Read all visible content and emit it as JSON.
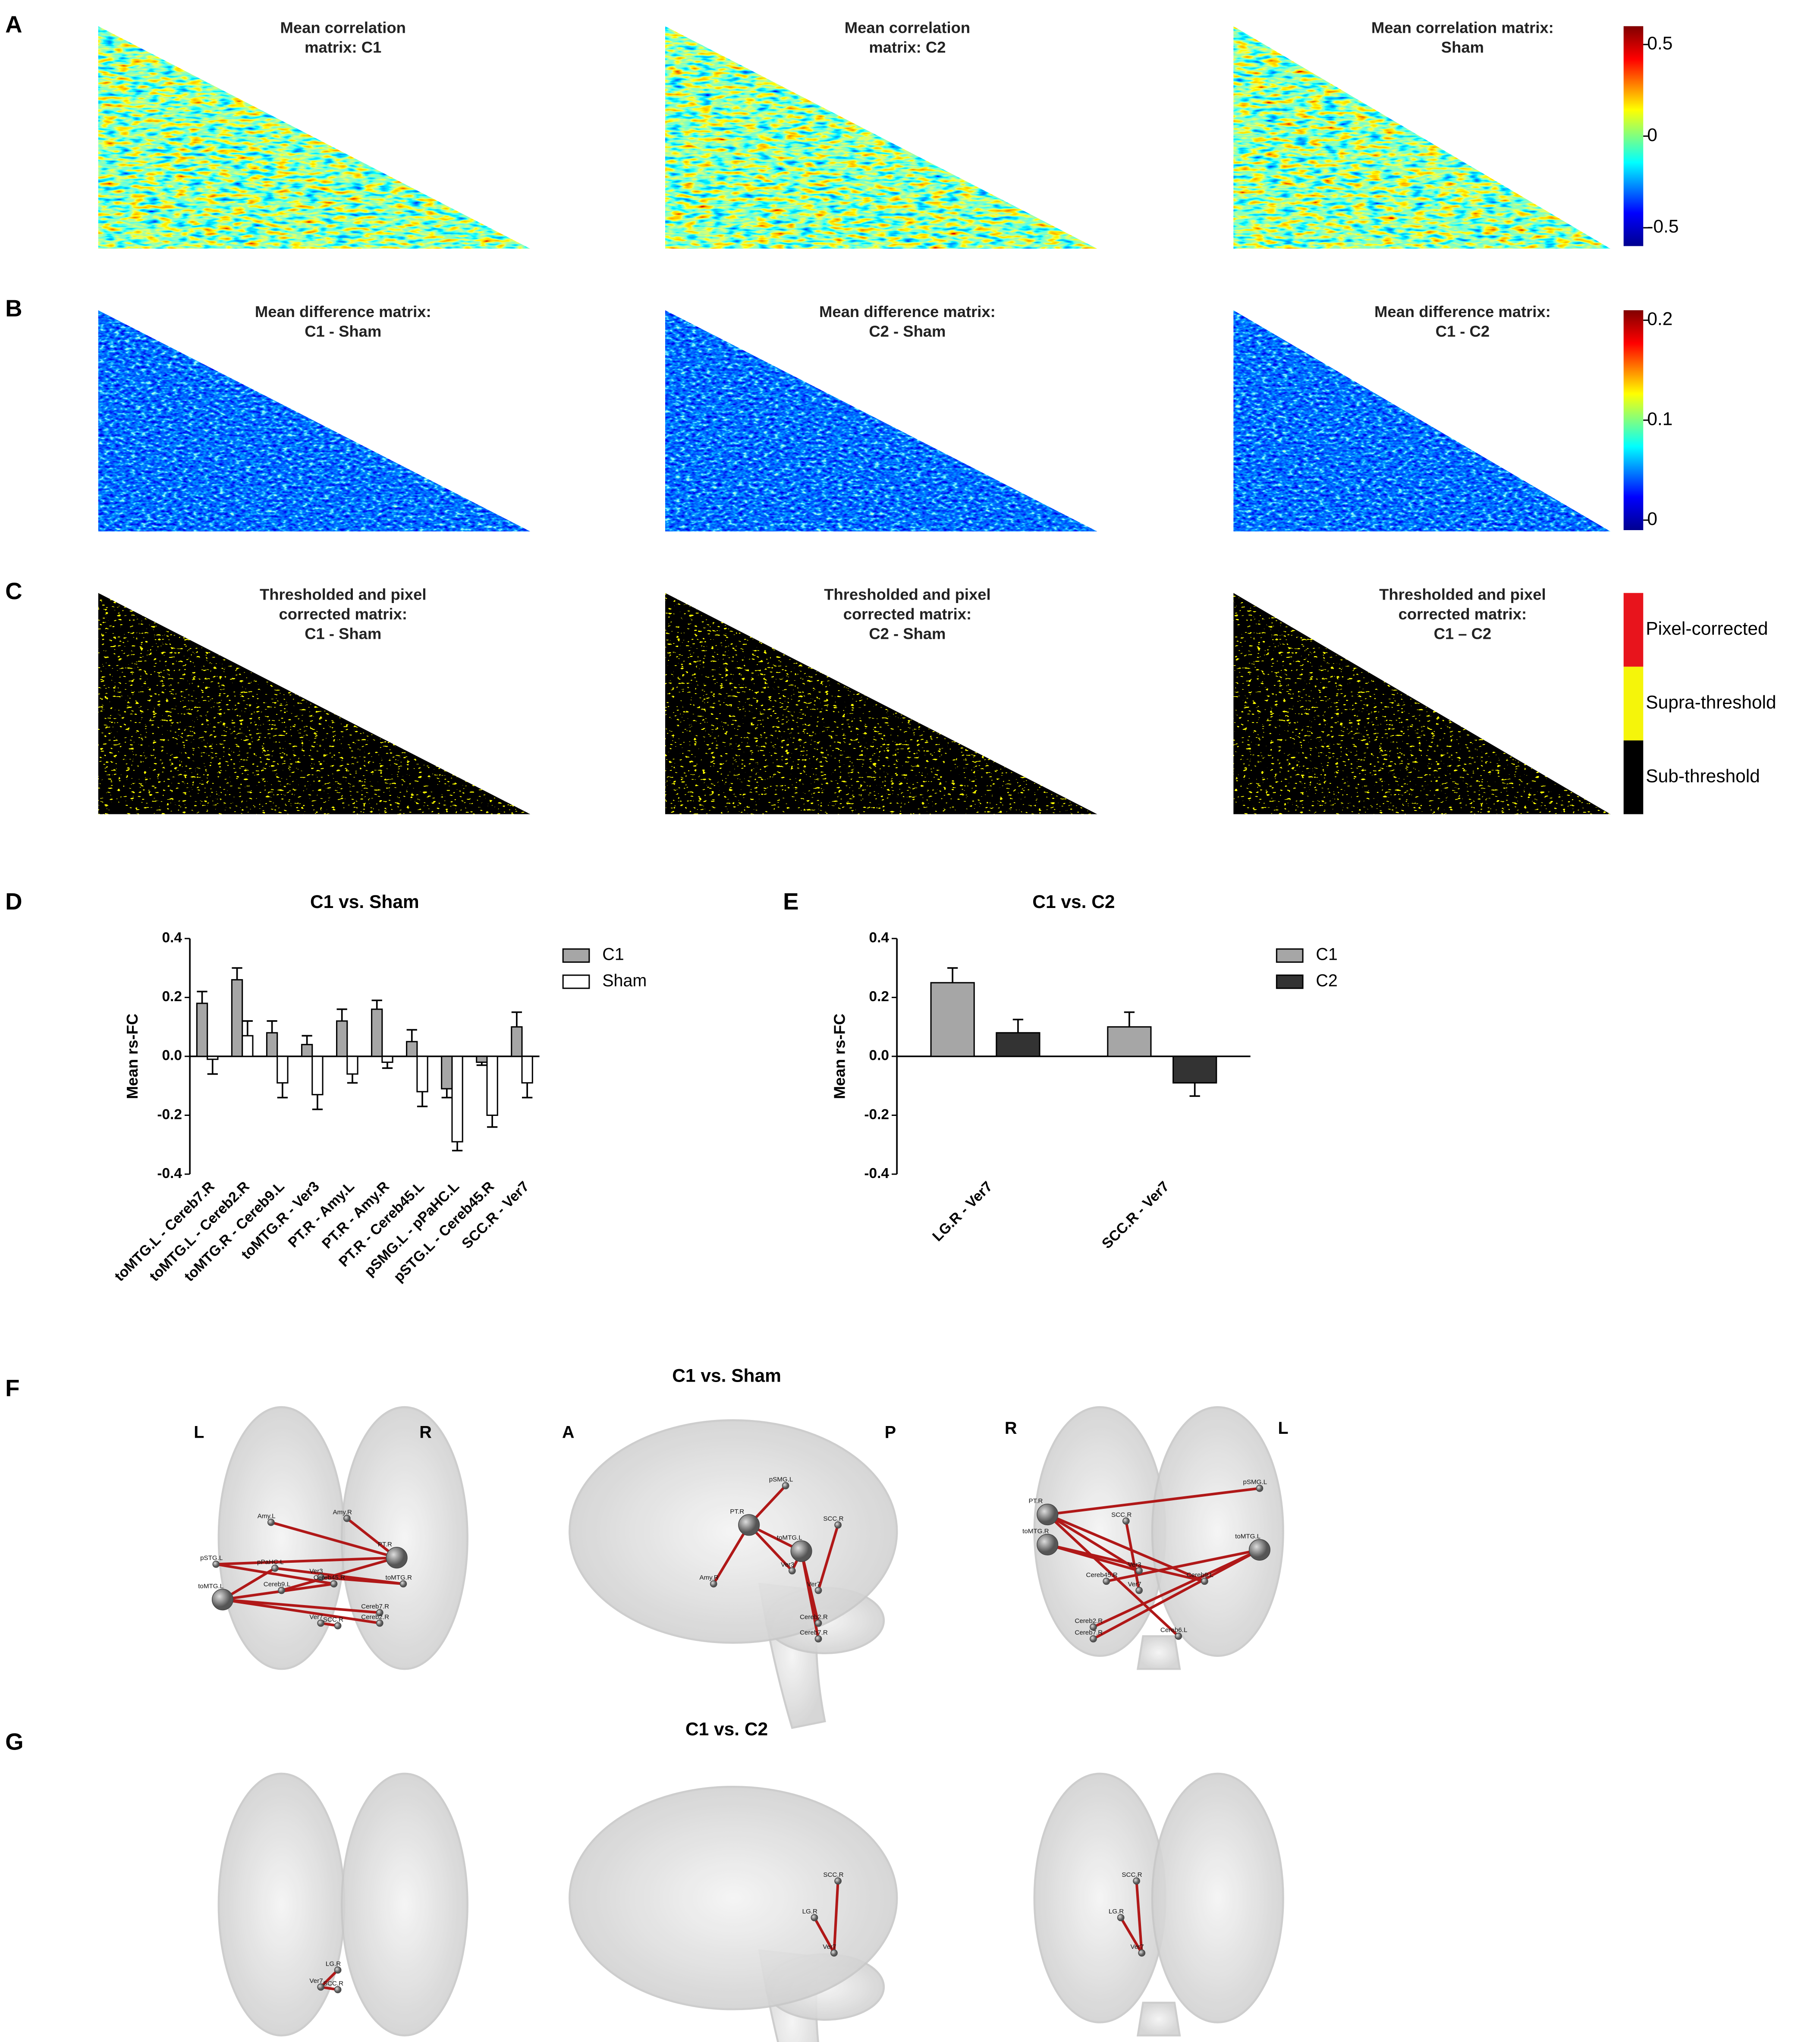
{
  "panels": {
    "A": {
      "letter": "A",
      "titles": [
        [
          "Mean correlation",
          "matrix: C1"
        ],
        [
          "Mean correlation",
          "matrix: C2"
        ],
        [
          "Mean correlation matrix:",
          "Sham"
        ]
      ],
      "colorbar": {
        "clim": [
          -0.6,
          0.6
        ],
        "ticks": [
          0.5,
          0,
          -0.5
        ]
      }
    },
    "B": {
      "letter": "B",
      "titles": [
        [
          "Mean difference matrix:",
          "C1 - Sham"
        ],
        [
          "Mean difference matrix:",
          "C2 - Sham"
        ],
        [
          "Mean difference matrix:",
          "C1 - C2"
        ]
      ],
      "colorbar": {
        "clim": [
          -0.01,
          0.21
        ],
        "ticks": [
          0.2,
          0.1,
          0
        ]
      }
    },
    "C": {
      "letter": "C",
      "titles": [
        [
          "Thresholded and pixel",
          "corrected matrix:",
          "C1 - Sham"
        ],
        [
          "Thresholded and pixel",
          "corrected matrix:",
          "C2 - Sham"
        ],
        [
          "Thresholded and pixel",
          "corrected matrix:",
          "C1 – C2"
        ]
      ],
      "legend": [
        {
          "label": "Pixel-corrected",
          "color": "#e8141c"
        },
        {
          "label": "Supra-threshold",
          "color": "#f5f50a"
        },
        {
          "label": "Sub-threshold",
          "color": "#000000"
        }
      ]
    },
    "F": {
      "letter": "F",
      "title": "C1 vs. Sham",
      "views": [
        {
          "sides": [
            "L",
            "R"
          ],
          "nodes": [
            "Amy.L",
            "Amy.R",
            "PT.R",
            "pSTG.L",
            "pPaHC.L",
            "Ver3",
            "Cereb45.R",
            "toMTG.R",
            "toMTG.L",
            "Cereb9.L",
            "Cereb7.R",
            "Cereb2.R",
            "Ver7",
            "SCC.R"
          ]
        },
        {
          "sides": [
            "A",
            "P"
          ],
          "nodes": [
            "pSMG.L",
            "PT.R",
            "SCC.R",
            "toMTG.L",
            "Amy.R",
            "Ver3",
            "Ver7",
            "Cereb2.R",
            "Cereb7.R"
          ]
        },
        {
          "sides": [
            "R",
            "L"
          ],
          "nodes": [
            "pSMG.L",
            "PT.R",
            "toMTG.R",
            "SCC.R",
            "toMTG.L",
            "Cereb45.R",
            "Ver3",
            "Ver7",
            "Cereb9.L",
            "Cereb2.R",
            "Cereb7.R",
            "Cereb6.L"
          ]
        }
      ]
    },
    "G": {
      "letter": "G",
      "title": "C1 vs. C2",
      "views": [
        {
          "nodes": [
            "LG.R",
            "Ver7",
            "SCC.R"
          ]
        },
        {
          "nodes": [
            "SCC.R",
            "LG.R",
            "Ver7"
          ]
        },
        {
          "nodes": [
            "SCC.R",
            "LG.R",
            "Ver7"
          ]
        }
      ]
    }
  },
  "chart_data": [
    {
      "type": "bar",
      "letter": "D",
      "title": "C1 vs. Sham",
      "y_label": "Mean rs-FC",
      "categories": [
        "toMTG.L - Cereb7.R",
        "toMTG.L - Cereb2.R",
        "toMTG.R - Cereb9.L",
        "toMTG.R - Ver3",
        "PT.R - Amy.L",
        "PT.R - Amy.R",
        "PT.R - Cereb45.L",
        "pSMG.L - pPaHC.L",
        "pSTG.L - Cereb45.R",
        "SCC.R - Ver7"
      ],
      "series": [
        {
          "name": "C1",
          "color": "#a6a6a6",
          "values": [
            0.18,
            0.26,
            0.08,
            0.04,
            0.12,
            0.16,
            0.05,
            -0.11,
            -0.02,
            0.1
          ],
          "errors": [
            0.04,
            0.04,
            0.04,
            0.03,
            0.04,
            0.03,
            0.04,
            0.03,
            0.01,
            0.05
          ]
        },
        {
          "name": "Sham",
          "color": "#ffffff",
          "values": [
            -0.01,
            0.07,
            -0.09,
            -0.13,
            -0.06,
            -0.02,
            -0.12,
            -0.29,
            -0.2,
            -0.09
          ],
          "errors": [
            0.05,
            0.05,
            0.05,
            0.05,
            0.03,
            0.02,
            0.05,
            0.03,
            0.04,
            0.05
          ]
        }
      ],
      "ylim": [
        -0.4,
        0.4
      ],
      "yticks": [
        0.4,
        0.2,
        {
          "value": 0,
          "label": "0.0"
        },
        -0.2,
        -0.4
      ],
      "legend": "right"
    },
    {
      "type": "bar",
      "letter": "E",
      "title": "C1 vs. C2",
      "y_label": "Mean rs-FC",
      "categories": [
        "LG.R - Ver7",
        "SCC.R - Ver7"
      ],
      "series": [
        {
          "name": "C1",
          "color": "#a6a6a6",
          "values": [
            0.25,
            0.1
          ],
          "errors": [
            0.05,
            0.05
          ]
        },
        {
          "name": "C2",
          "color": "#333333",
          "values": [
            0.08,
            -0.09
          ],
          "errors": [
            0.045,
            0.045
          ]
        }
      ],
      "ylim": [
        -0.4,
        0.4
      ],
      "yticks": [
        0.4,
        0.2,
        {
          "value": 0,
          "label": "0.0"
        },
        -0.2,
        -0.4
      ],
      "legend": "right"
    }
  ]
}
